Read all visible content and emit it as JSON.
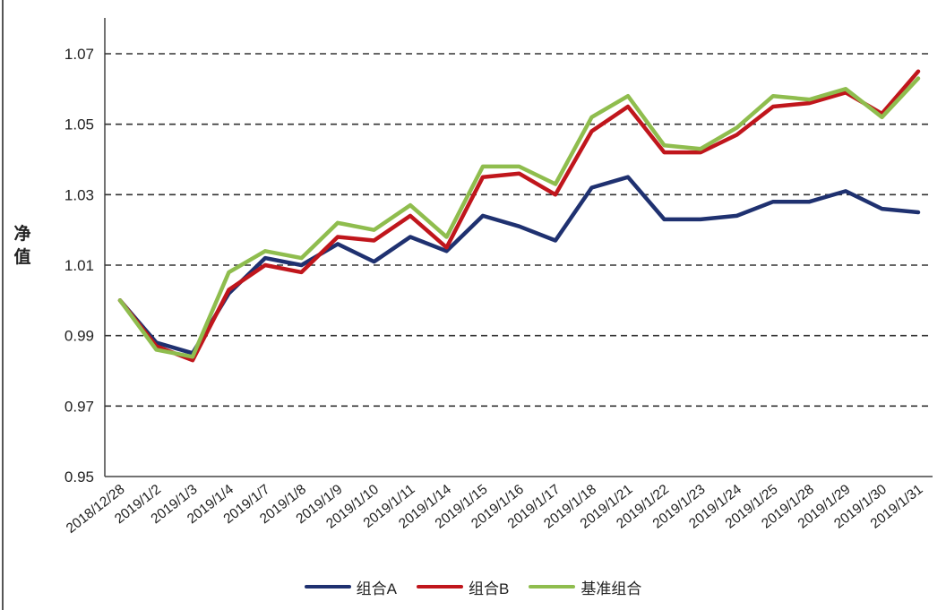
{
  "chart_data": {
    "type": "line",
    "ylabel": "净值",
    "xlabel": "",
    "title": "",
    "ylim": [
      0.95,
      1.07
    ],
    "yticks": [
      0.95,
      0.97,
      0.99,
      1.01,
      1.03,
      1.05,
      1.07
    ],
    "ytick_labels": [
      "0.95",
      "0.97",
      "0.99",
      "1.01",
      "1.03",
      "1.05",
      "1.07"
    ],
    "grid": "horizontal dashed",
    "legend_position": "bottom",
    "categories": [
      "2018/12/28",
      "2019/1/2",
      "2019/1/3",
      "2019/1/4",
      "2019/1/7",
      "2019/1/8",
      "2019/1/9",
      "2019/1/10",
      "2019/1/11",
      "2019/1/14",
      "2019/1/15",
      "2019/1/16",
      "2019/1/17",
      "2019/1/18",
      "2019/1/21",
      "2019/1/22",
      "2019/1/23",
      "2019/1/24",
      "2019/1/25",
      "2019/1/28",
      "2019/1/29",
      "2019/1/30",
      "2019/1/31"
    ],
    "series": [
      {
        "name": "组合A",
        "color": "#1f3170",
        "values": [
          1.0,
          0.988,
          0.985,
          1.002,
          1.012,
          1.01,
          1.016,
          1.011,
          1.018,
          1.014,
          1.024,
          1.021,
          1.017,
          1.032,
          1.035,
          1.023,
          1.023,
          1.024,
          1.028,
          1.028,
          1.031,
          1.026,
          1.025
        ]
      },
      {
        "name": "组合B",
        "color": "#c0161c",
        "values": [
          1.0,
          0.987,
          0.983,
          1.003,
          1.01,
          1.008,
          1.018,
          1.017,
          1.024,
          1.015,
          1.035,
          1.036,
          1.03,
          1.048,
          1.055,
          1.042,
          1.042,
          1.047,
          1.055,
          1.056,
          1.059,
          1.053,
          1.065
        ]
      },
      {
        "name": "基准组合",
        "color": "#8fbd4e",
        "values": [
          1.0,
          0.986,
          0.984,
          1.008,
          1.014,
          1.012,
          1.022,
          1.02,
          1.027,
          1.018,
          1.038,
          1.038,
          1.033,
          1.052,
          1.058,
          1.044,
          1.043,
          1.049,
          1.058,
          1.057,
          1.06,
          1.052,
          1.063
        ]
      }
    ]
  }
}
